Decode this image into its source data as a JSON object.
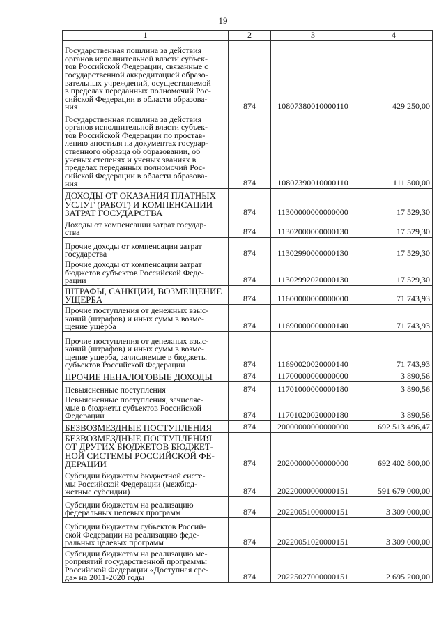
{
  "page_number": "19",
  "table": {
    "headers": [
      "1",
      "2",
      "3",
      "4"
    ],
    "rows": [
      {
        "name": "Государственная пошлина за действия\nорганов исполнительной власти субъек-\nтов Российской Федерации, связанные с\nгосударственной аккредитацией образо-\nвательных учреждений, осуществляемой\nв пределах переданных полномочий Рос-\nсийской Федерации в области образова-\nния",
        "admin": "874",
        "code": "10807380010000110",
        "amount": "429 250,00",
        "caps": false
      },
      {
        "name": "Государственная пошлина за действия\nорганов исполнительной власти субъек-\nтов Российской Федерации по простав-\nлению апостиля на документах государ-\nственного образца об образовании, об\nученых степенях и ученых званиях в\nпределах переданных полномочий Рос-\nсийской Федерации в области образова-\nния",
        "admin": "874",
        "code": "10807390010000110",
        "amount": "111 500,00",
        "caps": false
      },
      {
        "name": "ДОХОДЫ ОТ ОКАЗАНИЯ ПЛАТНЫХ\nУСЛУГ (РАБОТ) И КОМПЕНСАЦИИ\nЗАТРАТ ГОСУДАРСТВА",
        "admin": "874",
        "code": "11300000000000000",
        "amount": "17 529,30",
        "caps": true
      },
      {
        "name": "Доходы от компенсации затрат государ-\nства",
        "admin": "874",
        "code": "11302000000000130",
        "amount": "17 529,30",
        "caps": false
      },
      {
        "name": "Прочие доходы от компенсации затрат\nгосударства",
        "admin": "874",
        "code": "11302990000000130",
        "amount": "17 529,30",
        "caps": false
      },
      {
        "name": "Прочие доходы от компенсации затрат\nбюджетов субъектов Российской Феде-\nрации",
        "admin": "874",
        "code": "11302992020000130",
        "amount": "17 529,30",
        "caps": false
      },
      {
        "name": "ШТРАФЫ, САНКЦИИ, ВОЗМЕЩЕНИЕ\nУЩЕРБА",
        "admin": "874",
        "code": "11600000000000000",
        "amount": "71 743,93",
        "caps": true
      },
      {
        "name": "Прочие поступления от денежных взыс-\nканий (штрафов) и иных сумм в возме-\nщение ущерба",
        "admin": "874",
        "code": "11690000000000140",
        "amount": "71 743,93",
        "caps": false
      },
      {
        "name": "Прочие поступления от денежных взыс-\nканий (штрафов) и иных сумм в возме-\nщение ущерба, зачисляемые в бюджеты\nсубъектов Российской Федерации",
        "admin": "874",
        "code": "11690020020000140",
        "amount": "71 743,93",
        "caps": false
      },
      {
        "name": "ПРОЧИЕ НЕНАЛОГОВЫЕ ДОХОДЫ",
        "admin": "874",
        "code": "11700000000000000",
        "amount": "3 890,56",
        "caps": true
      },
      {
        "name": "Невыясненные поступления",
        "admin": "874",
        "code": "11701000000000180",
        "amount": "3 890,56",
        "caps": false
      },
      {
        "name": "Невыясненные поступления, зачисляе-\nмые в бюджеты субъектов Российской\nФедерации",
        "admin": "874",
        "code": "11701020020000180",
        "amount": "3 890,56",
        "caps": false
      },
      {
        "name": "БЕЗВОЗМЕЗДНЫЕ ПОСТУПЛЕНИЯ",
        "admin": "874",
        "code": "20000000000000000",
        "amount": "692 513 496,47",
        "caps": true
      },
      {
        "name": "БЕЗВОЗМЕЗДНЫЕ ПОСТУПЛЕНИЯ\nОТ ДРУГИХ БЮДЖЕТОВ БЮДЖЕТ-\nНОЙ СИСТЕМЫ РОССИЙСКОЙ ФЕ-\nДЕРАЦИИ",
        "admin": "874",
        "code": "20200000000000000",
        "amount": "692 402 800,00",
        "caps": true
      },
      {
        "name": "Субсидии бюджетам бюджетной систе-\nмы Российской Федерации (межбюд-\nжетные субсидии)",
        "admin": "874",
        "code": "20220000000000151",
        "amount": "591 679 000,00",
        "caps": false
      },
      {
        "name": "Субсидии бюджетам на реализацию\nфедеральных целевых программ",
        "admin": "874",
        "code": "20220051000000151",
        "amount": "3 309 000,00",
        "caps": false
      },
      {
        "name": "Субсидии бюджетам субъектов Россий-\nской Федерации на реализацию феде-\nральных целевых программ",
        "admin": "874",
        "code": "20220051020000151",
        "amount": "3 309 000,00",
        "caps": false
      },
      {
        "name": "Субсидии бюджетам на реализацию ме-\nроприятий государственной программы\nРоссийской Федерации «Доступная сре-\nда» на 2011-2020 годы",
        "admin": "874",
        "code": "20225027000000151",
        "amount": "2 695 200,00",
        "caps": false
      }
    ]
  }
}
